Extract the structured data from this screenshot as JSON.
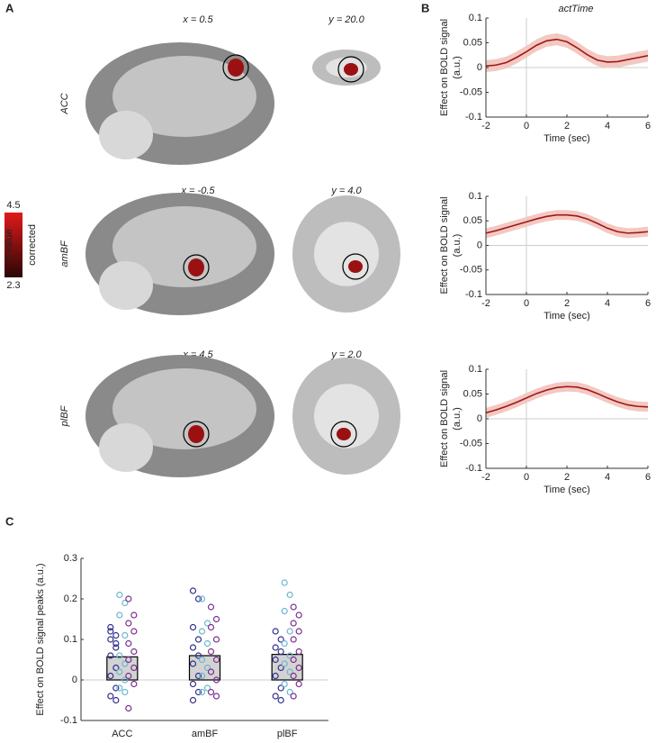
{
  "figure": {
    "panels": [
      "A",
      "B",
      "C"
    ],
    "rows": [
      {
        "label": "ACC",
        "sagittal": "x = 0.5",
        "coronal": "y = 20.0"
      },
      {
        "label": "amBF",
        "sagittal": "x = -0.5",
        "coronal": "y = 4.0"
      },
      {
        "label": "plBF",
        "sagittal": "x = 4.5",
        "coronal": "y = 2.0"
      }
    ],
    "colorbar": {
      "max": "4.5",
      "min": "2.3",
      "label": "z-value",
      "note": "corrected"
    }
  },
  "chart_data": [
    {
      "type": "line",
      "title": "actTime",
      "xlabel": "Time (sec)",
      "ylabel_lines": [
        "Effect on BOLD signal",
        "(a.u.)"
      ],
      "x": [
        -2,
        -1.5,
        -1,
        -0.5,
        0,
        0.5,
        1,
        1.5,
        2,
        2.5,
        3,
        3.5,
        4,
        4.5,
        5,
        5.5,
        6
      ],
      "series": [
        {
          "color": "#a31515",
          "band_color": "#f2c9c2",
          "values": [
            0.003,
            0.005,
            0.01,
            0.02,
            0.032,
            0.045,
            0.054,
            0.057,
            0.052,
            0.04,
            0.026,
            0.015,
            0.011,
            0.012,
            0.016,
            0.02,
            0.024
          ],
          "ci_upper": [
            0.015,
            0.017,
            0.022,
            0.032,
            0.044,
            0.057,
            0.066,
            0.069,
            0.064,
            0.052,
            0.038,
            0.027,
            0.023,
            0.024,
            0.028,
            0.032,
            0.036
          ],
          "ci_lower": [
            -0.009,
            -0.007,
            -0.002,
            0.008,
            0.02,
            0.033,
            0.042,
            0.045,
            0.04,
            0.028,
            0.014,
            0.003,
            -0.001,
            0,
            0.004,
            0.008,
            0.012
          ]
        }
      ],
      "xlim": [
        -2,
        6
      ],
      "xticks": [
        -2,
        0,
        2,
        4,
        6
      ],
      "ylim": [
        -0.1,
        0.1
      ],
      "yticks": [
        -0.1,
        -0.05,
        0,
        0.05,
        0.1
      ],
      "zero_lines": true
    },
    {
      "type": "line",
      "xlabel": "Time (sec)",
      "ylabel_lines": [
        "Effect on BOLD signal",
        "(a.u.)"
      ],
      "x": [
        -2,
        -1.5,
        -1,
        -0.5,
        0,
        0.5,
        1,
        1.5,
        2,
        2.5,
        3,
        3.5,
        4,
        4.5,
        5,
        5.5,
        6
      ],
      "series": [
        {
          "color": "#a31515",
          "band_color": "#f2c9c2",
          "values": [
            0.025,
            0.03,
            0.036,
            0.042,
            0.048,
            0.054,
            0.059,
            0.062,
            0.062,
            0.06,
            0.054,
            0.045,
            0.035,
            0.028,
            0.025,
            0.026,
            0.028
          ],
          "ci_upper": [
            0.035,
            0.04,
            0.046,
            0.052,
            0.058,
            0.064,
            0.069,
            0.072,
            0.072,
            0.07,
            0.064,
            0.055,
            0.045,
            0.038,
            0.035,
            0.036,
            0.038
          ],
          "ci_lower": [
            0.015,
            0.02,
            0.026,
            0.032,
            0.038,
            0.044,
            0.049,
            0.052,
            0.052,
            0.05,
            0.044,
            0.035,
            0.025,
            0.018,
            0.015,
            0.016,
            0.018
          ]
        }
      ],
      "xlim": [
        -2,
        6
      ],
      "xticks": [
        -2,
        0,
        2,
        4,
        6
      ],
      "ylim": [
        -0.1,
        0.1
      ],
      "yticks": [
        -0.1,
        -0.05,
        0,
        0.05,
        0.1
      ],
      "zero_lines": true
    },
    {
      "type": "line",
      "xlabel": "Time (sec)",
      "ylabel_lines": [
        "Effect on BOLD signal",
        "(a.u.)"
      ],
      "x": [
        -2,
        -1.5,
        -1,
        -0.5,
        0,
        0.5,
        1,
        1.5,
        2,
        2.5,
        3,
        3.5,
        4,
        4.5,
        5,
        5.5,
        6
      ],
      "series": [
        {
          "color": "#a31515",
          "band_color": "#f2c9c2",
          "values": [
            0.012,
            0.018,
            0.025,
            0.033,
            0.042,
            0.051,
            0.058,
            0.063,
            0.065,
            0.064,
            0.059,
            0.051,
            0.042,
            0.034,
            0.028,
            0.025,
            0.024
          ],
          "ci_upper": [
            0.022,
            0.028,
            0.035,
            0.043,
            0.052,
            0.061,
            0.068,
            0.073,
            0.075,
            0.074,
            0.069,
            0.061,
            0.052,
            0.044,
            0.038,
            0.035,
            0.034
          ],
          "ci_lower": [
            0.002,
            0.008,
            0.015,
            0.023,
            0.032,
            0.041,
            0.048,
            0.053,
            0.055,
            0.054,
            0.049,
            0.041,
            0.032,
            0.024,
            0.018,
            0.015,
            0.014
          ]
        }
      ],
      "xlim": [
        -2,
        6
      ],
      "xticks": [
        -2,
        0,
        2,
        4,
        6
      ],
      "ylim": [
        -0.1,
        0.1
      ],
      "yticks": [
        -0.1,
        -0.05,
        0,
        0.05,
        0.1
      ],
      "zero_lines": true
    },
    {
      "type": "bar",
      "ylabel": "Effect on BOLD signal peaks (a.u.)",
      "categories": [
        "ACC",
        "amBF",
        "plBF"
      ],
      "values": [
        0.057,
        0.06,
        0.063
      ],
      "color": "#d3d3d3",
      "edge_color": "#000000",
      "points": [
        {
          "color": "#2e2e8f",
          "values": [
            [
              0.13,
              0.11,
              0.1,
              0.08,
              0.06,
              0.03,
              0.01,
              -0.02,
              -0.04,
              -0.05,
              0.12,
              0.09
            ],
            [
              0.22,
              0.2,
              0.13,
              0.1,
              0.08,
              0.06,
              0.04,
              0.01,
              -0.01,
              -0.03,
              -0.05
            ],
            [
              0.12,
              0.1,
              0.08,
              0.07,
              0.05,
              0.03,
              0.01,
              -0.02,
              -0.04,
              -0.05
            ]
          ]
        },
        {
          "color": "#6bb6cf",
          "values": [
            [
              0.21,
              0.19,
              0.16,
              0.11,
              0.06,
              0.04,
              0.02,
              0,
              -0.02,
              -0.03
            ],
            [
              0.2,
              0.14,
              0.12,
              0.09,
              0.05,
              0.03,
              0.01,
              -0.02,
              -0.03
            ],
            [
              0.24,
              0.21,
              0.17,
              0.12,
              0.09,
              0.06,
              0.04,
              0.02,
              -0.01,
              -0.03
            ]
          ]
        },
        {
          "color": "#7b2c8f",
          "values": [
            [
              0.2,
              0.16,
              0.14,
              0.12,
              0.09,
              0.07,
              0.05,
              0.03,
              0.01,
              -0.01,
              -0.07
            ],
            [
              0.18,
              0.15,
              0.13,
              0.1,
              0.07,
              0.05,
              0.02,
              0,
              -0.03,
              -0.04
            ],
            [
              0.18,
              0.16,
              0.14,
              0.12,
              0.1,
              0.07,
              0.05,
              0.03,
              0.01,
              -0.01,
              -0.04
            ]
          ]
        }
      ],
      "ylim": [
        -0.1,
        0.3
      ],
      "yticks": [
        -0.1,
        0,
        0.1,
        0.2,
        0.3
      ],
      "zero_lines": true
    }
  ]
}
